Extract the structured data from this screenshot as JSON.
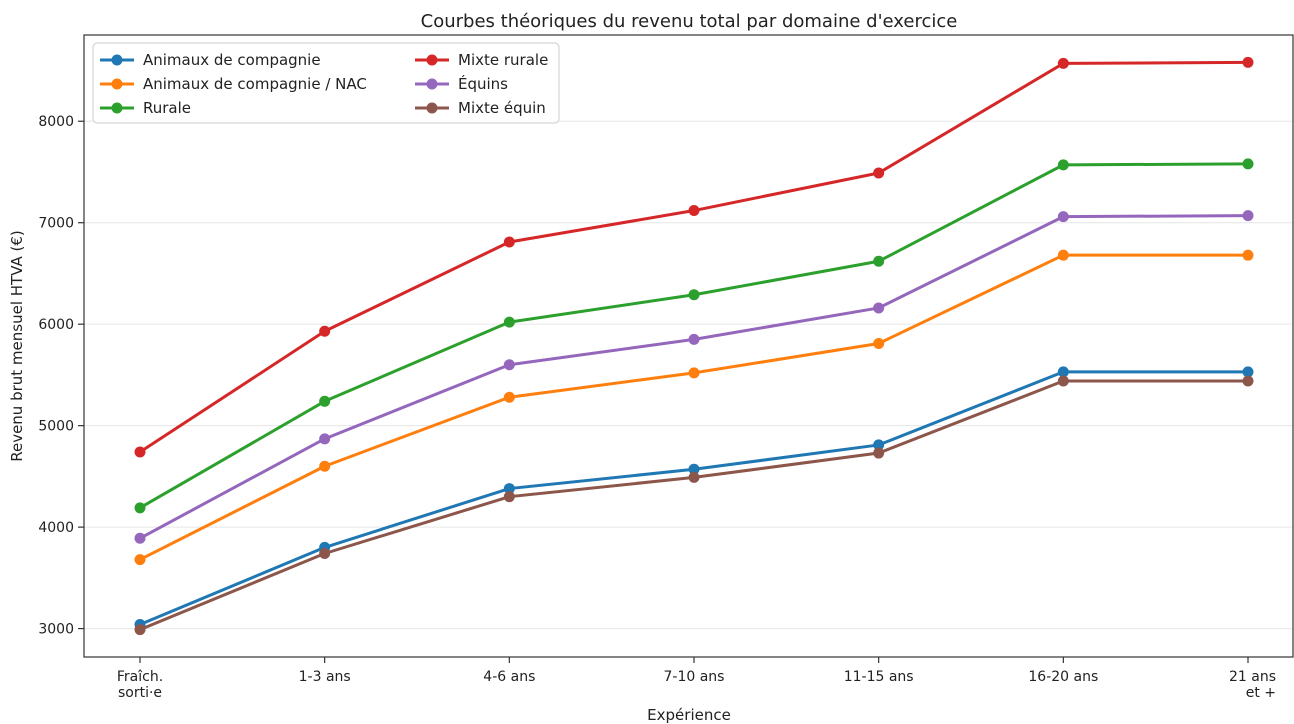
{
  "chart_data": {
    "type": "line",
    "title": "Courbes théoriques du revenu total par domaine d'exercice",
    "xlabel": "Expérience",
    "ylabel": "Revenu brut mensuel HTVA (€)",
    "categories": [
      [
        "Fraîch.",
        "sorti·e"
      ],
      [
        "1-3 ans"
      ],
      [
        "4-6 ans"
      ],
      [
        "7-10 ans"
      ],
      [
        "11-15 ans"
      ],
      [
        "16-20 ans"
      ],
      [
        "21 ans",
        "et +"
      ]
    ],
    "ylim": [
      2720,
      8850
    ],
    "yticks": [
      3000,
      4000,
      5000,
      6000,
      7000,
      8000
    ],
    "grid": "horizontal",
    "legend_position": "top-left",
    "legend_columns": 2,
    "series": [
      {
        "name": "Animaux de compagnie",
        "color": "#1f77b4",
        "values": [
          3040,
          3800,
          4380,
          4570,
          4810,
          5530,
          5530
        ]
      },
      {
        "name": "Animaux de compagnie / NAC",
        "color": "#ff7f0e",
        "values": [
          3680,
          4600,
          5280,
          5520,
          5810,
          6680,
          6680
        ]
      },
      {
        "name": "Rurale",
        "color": "#2ca02c",
        "values": [
          4190,
          5240,
          6020,
          6290,
          6620,
          7570,
          7580
        ]
      },
      {
        "name": "Mixte rurale",
        "color": "#d62728",
        "values": [
          4740,
          5930,
          6810,
          7120,
          7490,
          8570,
          8580
        ]
      },
      {
        "name": "Équins",
        "color": "#9467bd",
        "values": [
          3890,
          4870,
          5600,
          5850,
          6160,
          7060,
          7070
        ]
      },
      {
        "name": "Mixte équin",
        "color": "#8c564b",
        "values": [
          2990,
          3740,
          4300,
          4490,
          4730,
          5440,
          5440
        ]
      }
    ]
  }
}
